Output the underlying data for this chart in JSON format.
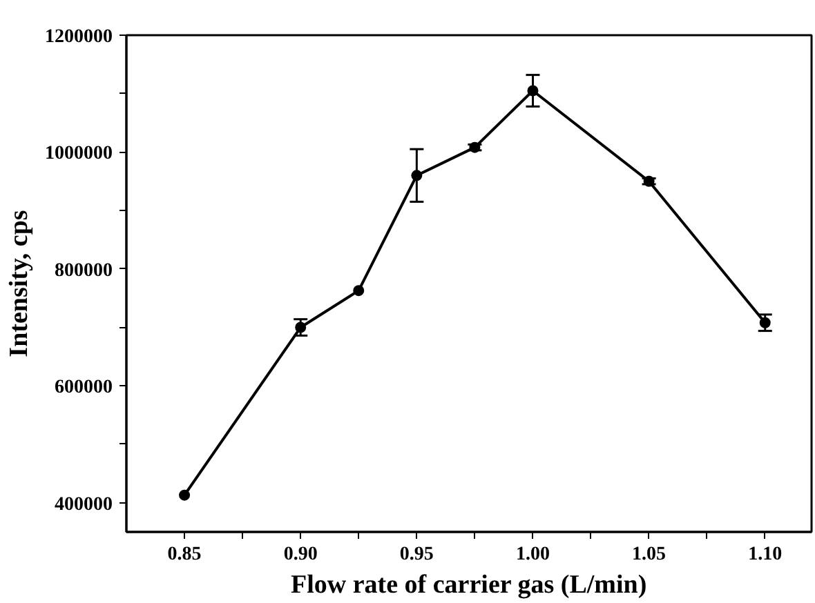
{
  "chart_data": {
    "type": "line",
    "xlabel": "Flow rate of carrier gas (L/min)",
    "ylabel": "Intensity, cps",
    "x": [
      0.85,
      0.9,
      0.925,
      0.95,
      0.975,
      1.0,
      1.05,
      1.1
    ],
    "series": [
      {
        "color": "#000000",
        "values": [
          413000,
          700000,
          763000,
          960000,
          1008000,
          1105000,
          950000,
          708000
        ],
        "errors": [
          null,
          14000,
          null,
          45000,
          5000,
          27000,
          5000,
          14000
        ]
      }
    ],
    "xlim": [
      0.825,
      1.12
    ],
    "xticks": [
      0.85,
      {
        "value": 0.875,
        "label": null
      },
      "0.90",
      {
        "value": 0.925,
        "label": null
      },
      0.95,
      {
        "value": 0.975,
        "label": null
      },
      "1.00",
      {
        "value": 1.025,
        "label": null
      },
      1.05,
      {
        "value": 1.075,
        "label": null
      },
      "1.10"
    ],
    "ylim": [
      350000,
      1200000
    ],
    "yticks": [
      400000,
      {
        "value": 500000,
        "label": null
      },
      600000,
      {
        "value": 700000,
        "label": null
      },
      800000,
      {
        "value": 900000,
        "label": null
      },
      1000000,
      {
        "value": 1100000,
        "label": null
      },
      1200000
    ],
    "grid": false,
    "marker": "circle",
    "line_style": "solid"
  }
}
